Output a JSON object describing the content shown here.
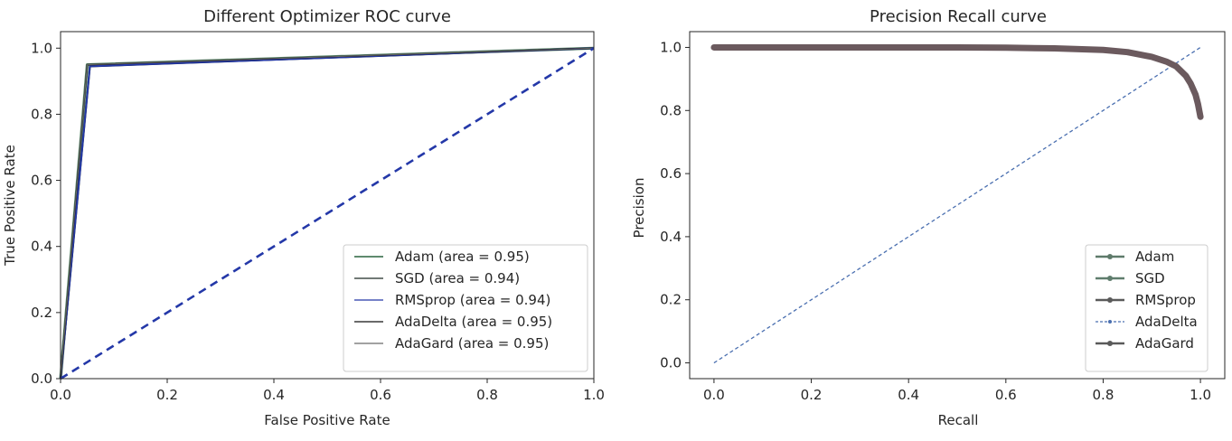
{
  "chart_data": [
    {
      "type": "line",
      "title": "Different Optimizer ROC curve",
      "xlabel": "False Positive Rate",
      "ylabel": "True Positive Rate",
      "xlim": [
        0,
        1
      ],
      "ylim": [
        0,
        1.05
      ],
      "xticks": [
        0,
        0.2,
        0.4,
        0.6,
        0.8,
        1
      ],
      "xtick_labels": [
        "0.0",
        "0.2",
        "0.4",
        "0.6",
        "0.8",
        "1.0"
      ],
      "yticks": [
        0,
        0.2,
        0.4,
        0.6,
        0.8,
        1
      ],
      "ytick_labels": [
        "0.0",
        "0.2",
        "0.4",
        "0.6",
        "0.8",
        "1.0"
      ],
      "grid": false,
      "legend_position": "lower-right",
      "series": [
        {
          "name": "Adam (area = 0.95)",
          "color": "#5e8a6e",
          "x": [
            0,
            0.05,
            1
          ],
          "y": [
            0,
            0.95,
            1
          ]
        },
        {
          "name": "SGD (area = 0.94)",
          "color": "#1e2a24",
          "x": [
            0,
            0.055,
            1
          ],
          "y": [
            0,
            0.945,
            1
          ]
        },
        {
          "name": "RMSprop (area = 0.94)",
          "color": "#2438a8",
          "x": [
            0,
            0.055,
            1
          ],
          "y": [
            0,
            0.945,
            1
          ]
        },
        {
          "name": "AdaDelta (area = 0.95)",
          "color": "#101010",
          "x": [
            0,
            0.05,
            1
          ],
          "y": [
            0,
            0.95,
            1
          ]
        },
        {
          "name": "AdaGard (area = 0.95)",
          "color": "#6a6a6a",
          "x": [
            0,
            0.05,
            1
          ],
          "y": [
            0,
            0.95,
            1
          ]
        }
      ],
      "reference_line": {
        "color": "#2438a8",
        "x": [
          0,
          1
        ],
        "y": [
          0,
          1
        ]
      }
    },
    {
      "type": "line",
      "title": "Precision Recall curve",
      "xlabel": "Recall",
      "ylabel": "Precision",
      "xlim": [
        -0.05,
        1.05
      ],
      "ylim": [
        -0.05,
        1.05
      ],
      "xticks": [
        0,
        0.2,
        0.4,
        0.6,
        0.8,
        1
      ],
      "xtick_labels": [
        "0.0",
        "0.2",
        "0.4",
        "0.6",
        "0.8",
        "1.0"
      ],
      "yticks": [
        0,
        0.2,
        0.4,
        0.6,
        0.8,
        1
      ],
      "ytick_labels": [
        "0.0",
        "0.2",
        "0.4",
        "0.6",
        "0.8",
        "1.0"
      ],
      "grid": false,
      "legend_position": "lower-right",
      "series": [
        {
          "name": "Adam",
          "color": "#5e7a6a",
          "style": "solid-marker"
        },
        {
          "name": "SGD",
          "color": "#5f7d6d",
          "style": "solid-marker"
        },
        {
          "name": "RMSprop",
          "color": "#5a5a5a",
          "style": "solid-marker"
        },
        {
          "name": "AdaDelta",
          "color": "#4a6fb0",
          "style": "dashed-marker"
        },
        {
          "name": "AdaGard",
          "color": "#5a5a5a",
          "style": "solid-marker"
        }
      ],
      "pr_curve": {
        "color": "#6b5a5e",
        "x": [
          0,
          0.1,
          0.2,
          0.3,
          0.4,
          0.5,
          0.6,
          0.7,
          0.8,
          0.85,
          0.9,
          0.93,
          0.95,
          0.97,
          0.98,
          0.99,
          0.995,
          1.0
        ],
        "y": [
          1.0,
          1.0,
          1.0,
          1.0,
          1.0,
          1.0,
          0.999,
          0.997,
          0.992,
          0.985,
          0.97,
          0.955,
          0.94,
          0.91,
          0.885,
          0.85,
          0.82,
          0.78
        ]
      },
      "reference_line": {
        "color": "#4a6fb0",
        "x": [
          0,
          1
        ],
        "y": [
          0,
          1
        ]
      }
    }
  ]
}
